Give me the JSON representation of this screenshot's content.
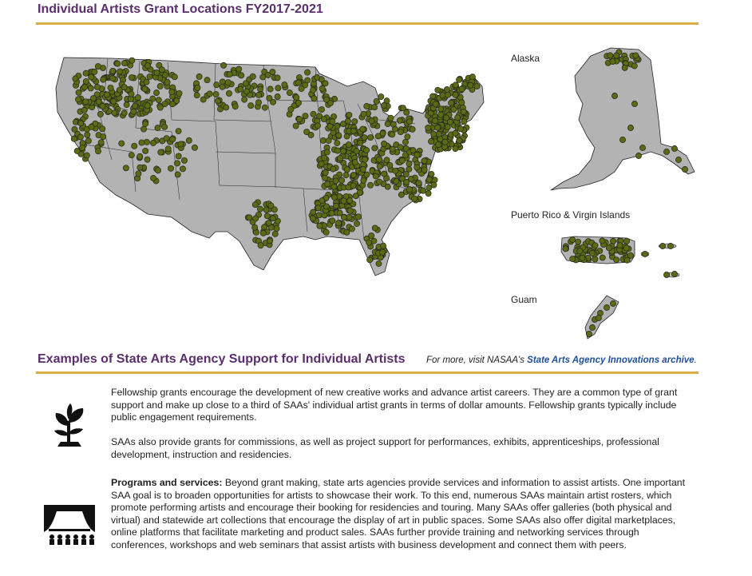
{
  "header": {
    "title": "Individual Artists Grant Locations FY2017-2021"
  },
  "map": {
    "labels": {
      "alaska": "Alaska",
      "pr_vi": "Puerto Rico & Virgin Islands",
      "guam": "Guam"
    },
    "land_color": "#b3b3b3",
    "marker_color": "#5b6b12"
  },
  "examples": {
    "title": "Examples of State Arts Agency Support for Individual Artists",
    "more_prefix": "For more, visit NASAA's ",
    "more_link": "State Arts Agency Innovations archive",
    "more_suffix": ".",
    "fellowship_text": "Fellowship grants encourage the development of new creative works and advance artist careers. They are a common type of grant support and make up close to a third of SAAs' individual artist grants in terms of dollar amounts. Fellowship grants typically include public engagement requirements.",
    "commissions_text": "SAAs also provide grants for commissions, as well as project support for performances, exhibits, apprenticeships, professional development, instruction and residencies.",
    "programs_label": "Programs and services:",
    "programs_text": " Beyond grant making, state arts agencies provide services and information to assist artists. One important SAA goal is to broaden opportunities for artists to showcase their work. To this end, numerous SAAs maintain artist rosters, which promote performing artists and encourage their booking for residencies and touring. Many SAAs offer galleries (both physical and virtual) and statewide art collections that encourage the display of art in public spaces. Some SAAs also offer digital marketplaces, online platforms that facilitate marketing and product sales. SAAs further provide training and networking services through conferences, workshops and web seminars that assist artists with business development and connect them with peers."
  },
  "icons": {
    "fellowship": "sprout-icon",
    "programs": "theater-stage-icon"
  }
}
